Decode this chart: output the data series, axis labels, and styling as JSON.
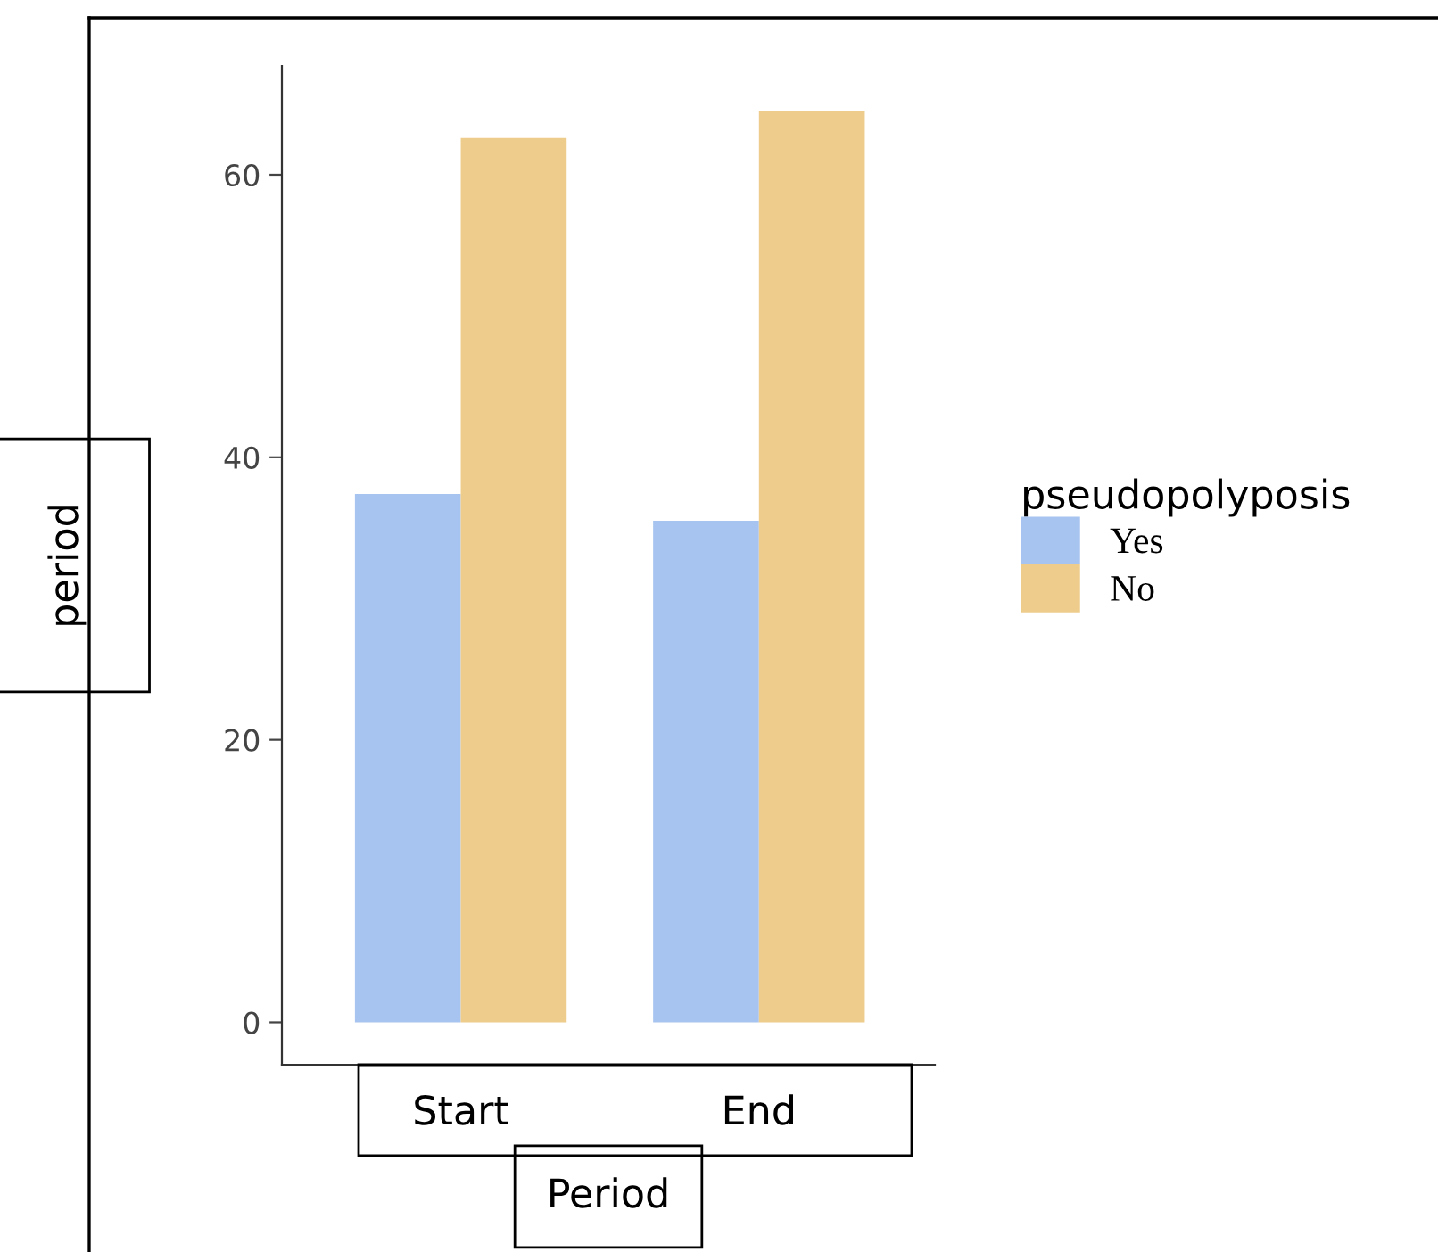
{
  "chart_data": {
    "type": "bar",
    "categories": [
      "Start",
      "End"
    ],
    "series": [
      {
        "name": "Yes",
        "color": "#a7c4f0",
        "values": [
          37.4,
          35.5
        ]
      },
      {
        "name": "No",
        "color": "#eecc8c",
        "values": [
          62.6,
          64.5
        ]
      }
    ],
    "xlabel": "Period",
    "ylabel": "period",
    "legend_title": "pseudopolyposis",
    "legend": "right",
    "ylim": [
      -3,
      67.7
    ],
    "yticks": [
      0,
      20,
      40,
      60
    ],
    "grid": false
  }
}
